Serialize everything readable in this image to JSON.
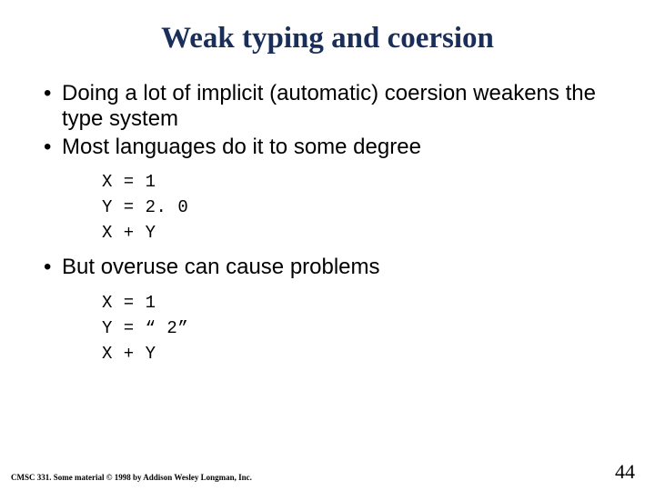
{
  "title": "Weak typing and coersion",
  "bullets": {
    "b1": "Doing a lot of implicit (automatic) coersion weakens the type system",
    "b2": "Most languages do it to some degree",
    "b3": "But overuse can cause problems"
  },
  "code1": {
    "l1": "X = 1",
    "l2": "Y = 2. 0",
    "l3": "X + Y"
  },
  "code2": {
    "l1": "X = 1",
    "l2": "Y = “ 2”",
    "l3": "X + Y"
  },
  "footer": {
    "left": "CMSC 331. Some material © 1998 by Addison Wesley Longman, Inc.",
    "page": "44"
  },
  "colors": {
    "title": "#1a2e5a",
    "text": "#000000",
    "background": "#ffffff"
  }
}
